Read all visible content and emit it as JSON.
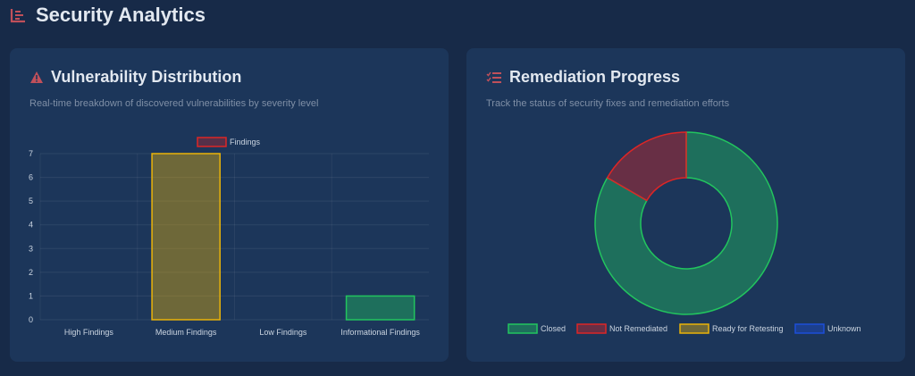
{
  "header": {
    "title": "Security Analytics",
    "icon": "chart-bar-icon"
  },
  "vuln": {
    "title": "Vulnerability Distribution",
    "subtitle": "Real-time breakdown of discovered vulnerabilities by severity level",
    "icon": "warning-icon"
  },
  "remed": {
    "title": "Remediation Progress",
    "subtitle": "Track the status of security fixes and remediation efforts",
    "icon": "checklist-icon"
  },
  "chart_data": [
    {
      "type": "bar",
      "title": "",
      "legend": [
        "Findings"
      ],
      "legend_position": "top",
      "categories": [
        "High Findings",
        "Medium Findings",
        "Low Findings",
        "Informational Findings"
      ],
      "values": [
        0,
        7,
        0,
        1
      ],
      "ylim": [
        0,
        7
      ],
      "yticks": [
        0,
        1,
        2,
        3,
        4,
        5,
        6,
        7
      ],
      "colors": [
        "#dc2626",
        "#eab308",
        "#3b82f6",
        "#22c55e"
      ],
      "grid": true
    },
    {
      "type": "pie",
      "donut": true,
      "categories": [
        "Closed",
        "Not Remediated",
        "Ready for Retesting",
        "Unknown"
      ],
      "values": [
        5,
        1,
        0,
        0
      ],
      "colors": [
        "#22c55e",
        "#dc2626",
        "#eab308",
        "#1d4ed8"
      ],
      "legend_position": "bottom"
    }
  ]
}
